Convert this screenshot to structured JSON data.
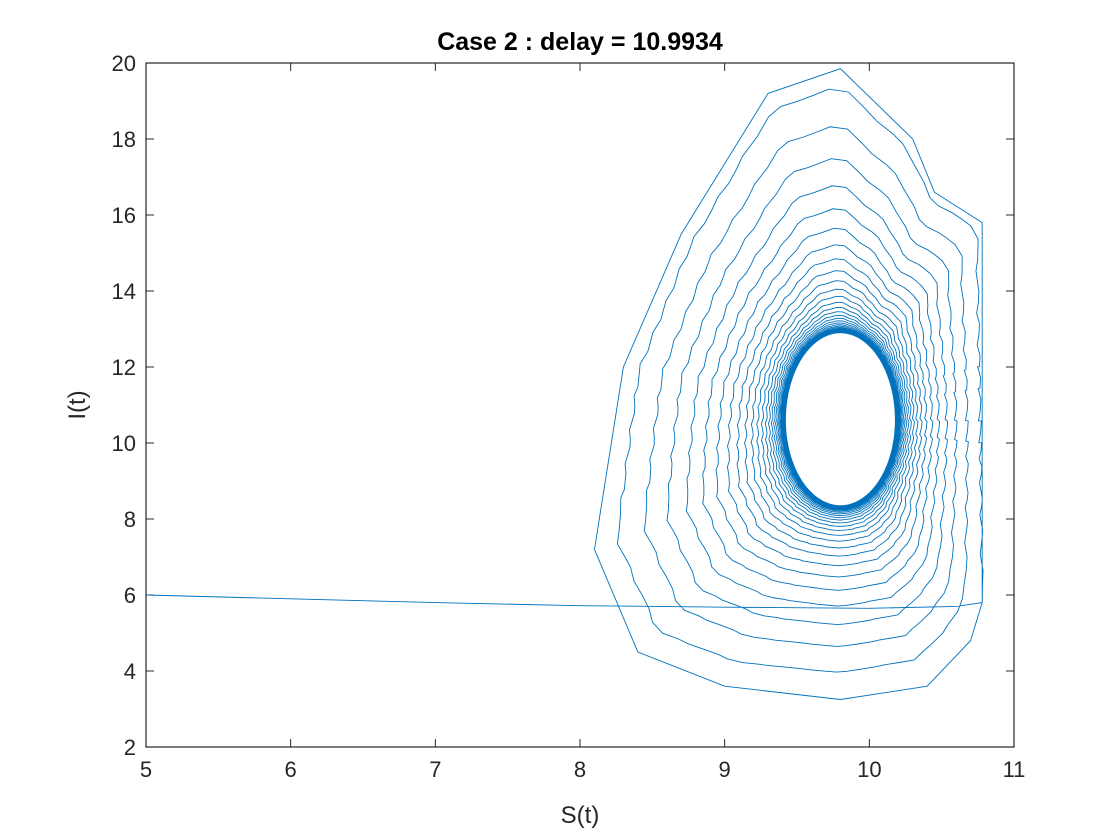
{
  "chart_data": {
    "type": "line",
    "title": "Case 2 : delay = 10.9934",
    "xlabel": "S(t)",
    "ylabel": "I(t)",
    "xlim": [
      5,
      11
    ],
    "ylim": [
      2,
      20
    ],
    "xticks": [
      "5",
      "6",
      "7",
      "8",
      "9",
      "10",
      "11"
    ],
    "yticks": [
      "2",
      "4",
      "6",
      "8",
      "10",
      "12",
      "14",
      "16",
      "18",
      "20"
    ],
    "grid": false,
    "legend": "none",
    "line_color": "#0072BD",
    "series": [
      {
        "description_of_shape": "spiral phase trajectory converging to a limit cycle",
        "initial_segment": [
          [
            5.0,
            6.0
          ],
          [
            6.0,
            5.9
          ],
          [
            7.0,
            5.8
          ],
          [
            8.0,
            5.72
          ],
          [
            9.0,
            5.68
          ],
          [
            10.0,
            5.65
          ],
          [
            10.6,
            5.7
          ],
          [
            10.78,
            5.8
          ]
        ],
        "center": [
          9.8,
          10.6
        ],
        "outer_loop": [
          [
            10.78,
            5.8
          ],
          [
            10.78,
            10.0
          ],
          [
            10.78,
            15.8
          ],
          [
            10.45,
            16.6
          ],
          [
            10.3,
            18.0
          ],
          [
            9.8,
            19.85
          ],
          [
            9.3,
            19.2
          ],
          [
            8.7,
            15.5
          ],
          [
            8.3,
            12.0
          ],
          [
            8.1,
            7.2
          ],
          [
            8.4,
            4.5
          ],
          [
            9.0,
            3.6
          ],
          [
            9.8,
            3.25
          ],
          [
            10.4,
            3.6
          ],
          [
            10.7,
            4.8
          ],
          [
            10.78,
            5.8
          ]
        ],
        "limit_cycle": {
          "s_min": 9.42,
          "s_max": 10.18,
          "i_min": 8.35,
          "i_max": 12.9
        },
        "turns": 36
      }
    ]
  }
}
